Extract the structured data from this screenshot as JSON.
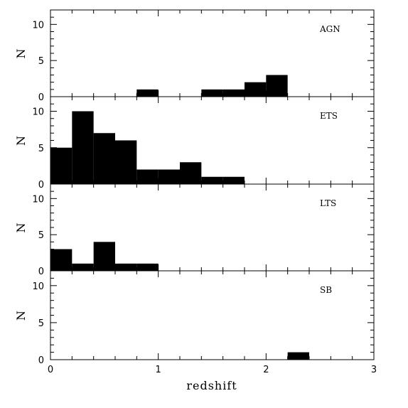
{
  "chart_data": {
    "type": "bar",
    "xlabel": "redshift",
    "ylabel": "N",
    "xlim": [
      0,
      3
    ],
    "ylim": [
      0,
      12
    ],
    "x_ticks": [
      0,
      1,
      2,
      3
    ],
    "y_ticks": [
      0,
      5,
      10
    ],
    "bin_edges": [
      0,
      0.2,
      0.4,
      0.6,
      0.8,
      1.0,
      1.2,
      1.4,
      1.6,
      1.8,
      2.0,
      2.2,
      2.4,
      2.6,
      2.8,
      3.0
    ],
    "panels": [
      {
        "name": "AGN",
        "values": [
          0,
          0,
          0,
          0,
          1,
          0,
          0,
          1,
          1,
          2,
          3,
          0,
          0,
          0,
          0
        ]
      },
      {
        "name": "ETS",
        "values": [
          5,
          10,
          7,
          6,
          2,
          2,
          3,
          1,
          1,
          0,
          0,
          0,
          0,
          0,
          0
        ]
      },
      {
        "name": "LTS",
        "values": [
          3,
          1,
          4,
          1,
          1,
          0,
          0,
          0,
          0,
          0,
          0,
          0,
          0,
          0,
          0
        ]
      },
      {
        "name": "SB",
        "values": [
          0,
          0,
          0,
          0,
          0,
          0,
          0,
          0,
          0,
          0,
          0,
          1,
          0,
          0,
          0
        ]
      }
    ],
    "grid": false,
    "legend": "none"
  }
}
